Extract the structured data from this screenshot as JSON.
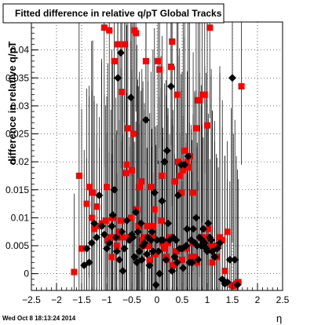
{
  "footer": {
    "timestamp": "Wed Oct  8 18:13:24 2014"
  },
  "chart_data": {
    "type": "scatter",
    "title": "Fitted difference in relative q/pT  Global Tracks",
    "xlabel": "η",
    "ylabel": "difference in relative q/pT",
    "xlim": [
      -2.5,
      2.5
    ],
    "ylim": [
      -0.003,
      0.045
    ],
    "xticks": [
      "−2.5",
      "−2",
      "−1.5",
      "−1",
      "−0.5",
      "0",
      "0.5",
      "1",
      "1.5",
      "2",
      "2.5"
    ],
    "yticks": [
      "0",
      "0.005",
      "0.01",
      "0.015",
      "0.02",
      "0.025",
      "0.03",
      "0.035",
      "0.04"
    ],
    "grid": true,
    "series": [
      {
        "marker": "square",
        "color": "#ff0000",
        "points": [
          [
            -1.65,
            0.0003
          ],
          [
            -1.55,
            0.0175
          ],
          [
            -1.5,
            0.0045
          ],
          [
            -1.4,
            0.0125
          ],
          [
            -1.35,
            0.0155
          ],
          [
            -1.3,
            0.01
          ],
          [
            -1.28,
            0.0145
          ],
          [
            -1.25,
            0.008
          ],
          [
            -1.2,
            0.012
          ],
          [
            -1.15,
            0.0085
          ],
          [
            -1.1,
            0.009
          ],
          [
            -1.05,
            0.044
          ],
          [
            -1.02,
            0.0095
          ],
          [
            -1.0,
            0.0155
          ],
          [
            -0.98,
            0.006
          ],
          [
            -0.95,
            0.0435
          ],
          [
            -0.92,
            0.0065
          ],
          [
            -0.9,
            0.003
          ],
          [
            -0.88,
            0.01
          ],
          [
            -0.85,
            0.038
          ],
          [
            -0.82,
            0.0065
          ],
          [
            -0.8,
            0.005
          ],
          [
            -0.78,
            0.041
          ],
          [
            -0.75,
            0.0075
          ],
          [
            -0.72,
            0.0095
          ],
          [
            -0.7,
            0.0325
          ],
          [
            -0.68,
            0.0065
          ],
          [
            -0.65,
            0.041
          ],
          [
            -0.62,
            0.018
          ],
          [
            -0.6,
            0.0195
          ],
          [
            -0.58,
            0.026
          ],
          [
            -0.55,
            0.0065
          ],
          [
            -0.52,
            0.01
          ],
          [
            -0.5,
            0.0185
          ],
          [
            -0.47,
            0.025
          ],
          [
            -0.45,
            0.0435
          ],
          [
            -0.42,
            0.043
          ],
          [
            -0.4,
            0.0115
          ],
          [
            -0.37,
            0.0085
          ],
          [
            -0.35,
            0.0155
          ],
          [
            -0.32,
            0.0165
          ],
          [
            -0.3,
            0.005
          ],
          [
            -0.28,
            0.006
          ],
          [
            -0.25,
            0.0065
          ],
          [
            -0.22,
            0.038
          ],
          [
            -0.2,
            0.0085
          ],
          [
            -0.18,
            0.005
          ],
          [
            -0.15,
            0.0025
          ],
          [
            -0.12,
            0.0155
          ],
          [
            -0.1,
            0.0065
          ],
          [
            -0.08,
            0.0085
          ],
          [
            -0.05,
            0.0115
          ],
          [
            -0.03,
            0.0035
          ],
          [
            0.02,
            0.038
          ],
          [
            0.05,
            0.0365
          ],
          [
            0.08,
            0.0095
          ],
          [
            0.1,
            0.0175
          ],
          [
            0.12,
            0.0055
          ],
          [
            0.15,
            0.0045
          ],
          [
            0.18,
            0.003
          ],
          [
            0.2,
            0.0025
          ],
          [
            0.22,
            0.0055
          ],
          [
            0.25,
            0.0065
          ],
          [
            0.28,
            0.037
          ],
          [
            0.3,
            0.0415
          ],
          [
            0.32,
            0.0015
          ],
          [
            0.35,
            0.0165
          ],
          [
            0.38,
            0.004
          ],
          [
            0.4,
            0.032
          ],
          [
            0.42,
            0.02
          ],
          [
            0.45,
            0.0175
          ],
          [
            0.48,
            0.0145
          ],
          [
            0.5,
            0.0025
          ],
          [
            0.52,
            0.0185
          ],
          [
            0.55,
            0.022
          ],
          [
            0.58,
            0.0045
          ],
          [
            0.6,
            0.02
          ],
          [
            0.62,
            0.019
          ],
          [
            0.65,
            0.021
          ],
          [
            0.68,
            0.003
          ],
          [
            0.7,
            0.0055
          ],
          [
            0.72,
            0.0145
          ],
          [
            0.75,
            0.003
          ],
          [
            0.78,
            0.026
          ],
          [
            0.8,
            0.002
          ],
          [
            0.82,
            0.031
          ],
          [
            0.85,
            0.031
          ],
          [
            0.88,
            0.0065
          ],
          [
            0.9,
            0.032
          ],
          [
            0.92,
            0.006
          ],
          [
            0.95,
            0.032
          ],
          [
            0.98,
            0.0065
          ],
          [
            1.0,
            0.0265
          ],
          [
            1.02,
            0.008
          ],
          [
            1.05,
            0.044
          ],
          [
            1.08,
            0.005
          ],
          [
            1.1,
            0.002
          ],
          [
            1.15,
            0.0045
          ],
          [
            1.18,
            0.003
          ],
          [
            1.22,
            0.005
          ],
          [
            1.25,
            0.0065
          ],
          [
            1.3,
            0.006
          ],
          [
            1.35,
            0.0005
          ],
          [
            1.4,
            0.0075
          ],
          [
            1.48,
            -0.002
          ],
          [
            1.52,
            -0.0022
          ],
          [
            1.58,
            -0.0018
          ],
          [
            1.62,
            -0.0015
          ],
          [
            1.68,
            0.0335
          ]
        ]
      },
      {
        "marker": "diamond",
        "color": "#000000",
        "points": [
          [
            -1.45,
            0.0015
          ],
          [
            -1.4,
            0.0045
          ],
          [
            -1.35,
            0.002
          ],
          [
            -1.3,
            0.0055
          ],
          [
            -1.25,
            0.009
          ],
          [
            -1.2,
            0.0065
          ],
          [
            -1.15,
            0.014
          ],
          [
            -1.1,
            0.0085
          ],
          [
            -1.05,
            0.007
          ],
          [
            -1.0,
            0.0045
          ],
          [
            -0.95,
            0.0055
          ],
          [
            -0.9,
            0.0085
          ],
          [
            -0.88,
            0.0105
          ],
          [
            -0.85,
            0.015
          ],
          [
            -0.82,
            0.0065
          ],
          [
            -0.8,
            0.004
          ],
          [
            -0.78,
            0.035
          ],
          [
            -0.75,
            0.0025
          ],
          [
            -0.72,
            0.0395
          ],
          [
            -0.7,
            0.0075
          ],
          [
            -0.68,
            0.0005
          ],
          [
            -0.65,
            0.0045
          ],
          [
            -0.6,
            0.0095
          ],
          [
            -0.55,
            0.006
          ],
          [
            -0.52,
            0.0315
          ],
          [
            -0.5,
            0.007
          ],
          [
            -0.48,
            0.0065
          ],
          [
            -0.45,
            0.003
          ],
          [
            -0.42,
            0.011
          ],
          [
            -0.4,
            0.002
          ],
          [
            -0.38,
            0.0075
          ],
          [
            -0.35,
            0.004
          ],
          [
            -0.32,
            0.009
          ],
          [
            -0.3,
            0.0025
          ],
          [
            -0.28,
            0.005
          ],
          [
            -0.25,
            0.0055
          ],
          [
            -0.22,
            0.0275
          ],
          [
            -0.2,
            0.0035
          ],
          [
            -0.18,
            0.0065
          ],
          [
            -0.15,
            0.0015
          ],
          [
            -0.12,
            0.006
          ],
          [
            -0.1,
            0.0075
          ],
          [
            -0.08,
            0.004
          ],
          [
            -0.05,
            0.0145
          ],
          [
            -0.02,
            -0.002
          ],
          [
            0.0,
            0.006
          ],
          [
            0.03,
            0.004
          ],
          [
            0.05,
            0.0
          ],
          [
            0.08,
            0.006
          ],
          [
            0.1,
            0.013
          ],
          [
            0.12,
            0.006
          ],
          [
            0.15,
            0.02
          ],
          [
            0.18,
            0.0025
          ],
          [
            0.2,
            0.022
          ],
          [
            0.22,
            0.009
          ],
          [
            0.25,
            0.006
          ],
          [
            0.28,
            0.0335
          ],
          [
            0.3,
            0.0005
          ],
          [
            0.32,
            0.0065
          ],
          [
            0.35,
            0.003
          ],
          [
            0.38,
            0.006
          ],
          [
            0.4,
            0.002
          ],
          [
            0.42,
            0.014
          ],
          [
            0.45,
            0.0045
          ],
          [
            0.48,
            0.0195
          ],
          [
            0.5,
            0.0045
          ],
          [
            0.52,
            0.001
          ],
          [
            0.55,
            0.0195
          ],
          [
            0.58,
            0.005
          ],
          [
            0.6,
            0.008
          ],
          [
            0.62,
            0.021
          ],
          [
            0.65,
            0.002
          ],
          [
            0.68,
            0.006
          ],
          [
            0.7,
            0.002
          ],
          [
            0.72,
            0.008
          ],
          [
            0.75,
            0.0055
          ],
          [
            0.78,
            0.01
          ],
          [
            0.8,
            0.005
          ],
          [
            0.82,
            0.0025
          ],
          [
            0.85,
            0.0065
          ],
          [
            0.88,
            0.005
          ],
          [
            0.9,
            0.006
          ],
          [
            0.92,
            0.008
          ],
          [
            0.95,
            0.0055
          ],
          [
            0.98,
            0.0045
          ],
          [
            1.0,
            0.004
          ],
          [
            1.02,
            0.009
          ],
          [
            1.05,
            0.0065
          ],
          [
            1.08,
            0.006
          ],
          [
            1.1,
            0.004
          ],
          [
            1.15,
            0.003
          ],
          [
            1.2,
            0.0045
          ],
          [
            1.25,
            0.0055
          ],
          [
            1.3,
            -0.001
          ],
          [
            1.35,
            -0.0018
          ],
          [
            1.4,
            -0.0015
          ],
          [
            1.45,
            0.0025
          ],
          [
            1.5,
            0.035
          ],
          [
            1.55,
            0.0025
          ],
          [
            1.6,
            -0.002
          ]
        ]
      }
    ]
  }
}
